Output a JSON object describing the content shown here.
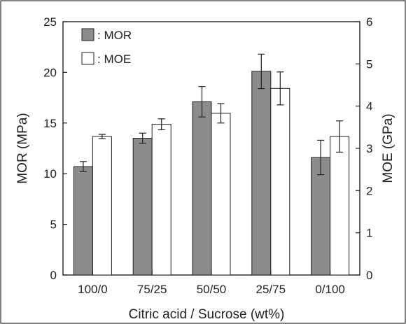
{
  "chart_data": {
    "type": "bar",
    "categories": [
      "100/0",
      "75/25",
      "50/50",
      "25/75",
      "0/100"
    ],
    "xlabel": "Citric acid / Sucrose (wt%)",
    "ylabel": "MOR (MPa)",
    "y2label": "MOE (GPa)",
    "ylim": [
      0,
      25
    ],
    "y2lim": [
      0,
      6
    ],
    "yticks": [
      0,
      5,
      10,
      15,
      20,
      25
    ],
    "y2ticks": [
      0,
      1,
      2,
      3,
      4,
      5,
      6
    ],
    "legend_position": "top-left",
    "grid": false,
    "series": [
      {
        "name": ": MOR",
        "axis": "left",
        "color": "#8c8c8c",
        "values": [
          10.7,
          13.5,
          17.1,
          20.1,
          11.6
        ],
        "errors": [
          0.5,
          0.5,
          1.5,
          1.7,
          1.7
        ]
      },
      {
        "name": ": MOE",
        "axis": "right",
        "color": "#ffffff",
        "values": [
          3.28,
          3.57,
          3.83,
          4.42,
          3.28
        ],
        "errors": [
          0.05,
          0.13,
          0.23,
          0.39,
          0.37
        ]
      }
    ]
  },
  "colors": {
    "axis": "#222222",
    "border": "#333333"
  }
}
